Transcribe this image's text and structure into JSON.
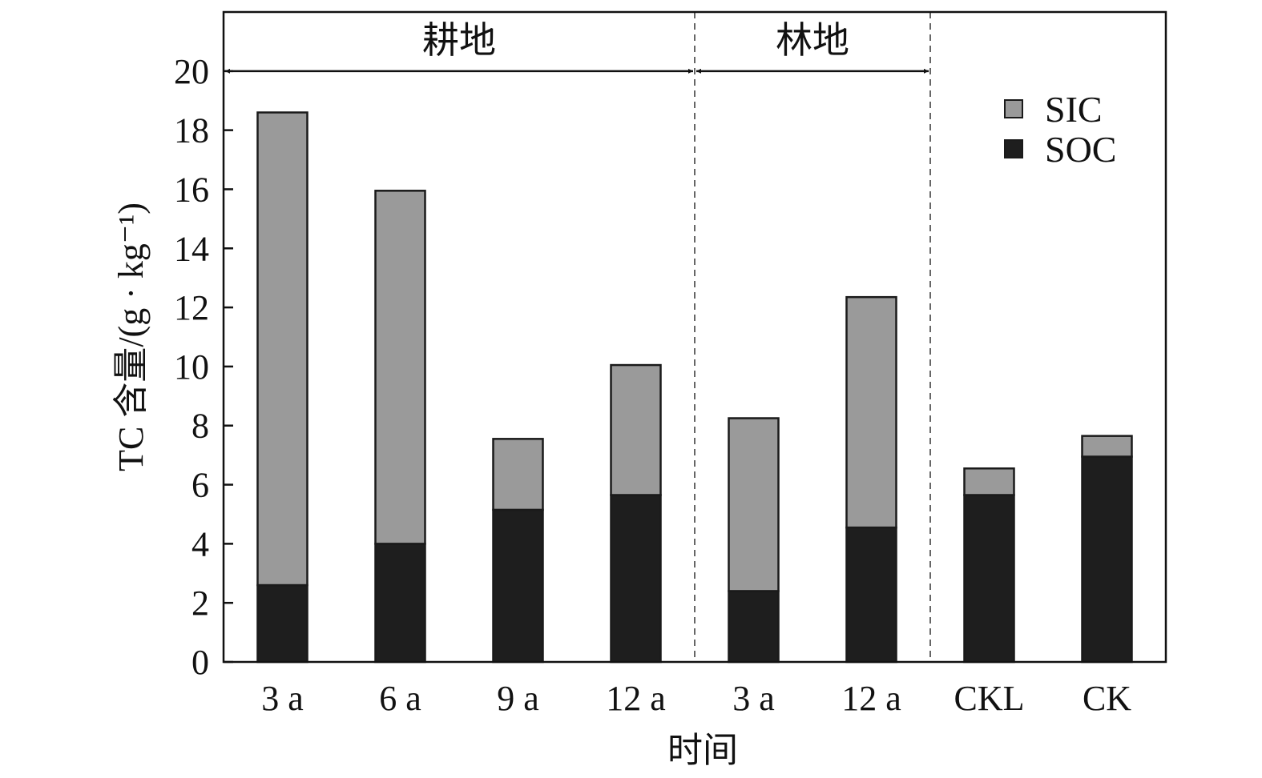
{
  "chart_data": {
    "type": "bar",
    "stacked": true,
    "categories": [
      "3 a",
      "6 a",
      "9 a",
      "12 a",
      "3 a",
      "12 a",
      "CKL",
      "CK"
    ],
    "series": [
      {
        "name": "SOC",
        "color": "#1e1e1e",
        "values": [
          2.6,
          4.0,
          5.15,
          5.65,
          2.4,
          4.55,
          5.65,
          6.95
        ]
      },
      {
        "name": "SIC",
        "color": "#9a9a9a",
        "values": [
          16.0,
          11.95,
          2.4,
          4.4,
          5.85,
          7.8,
          0.9,
          0.7
        ]
      }
    ],
    "title": "",
    "xlabel": "时间",
    "ylabel": "TC 含量/(g · kg⁻¹)",
    "ylim": [
      0,
      22
    ],
    "yticks": [
      0,
      2,
      4,
      6,
      8,
      10,
      12,
      14,
      16,
      18,
      20
    ],
    "grid": false,
    "legend": {
      "placement": "top-right",
      "order": [
        "SIC",
        "SOC"
      ]
    },
    "groups": [
      {
        "label": "耕地",
        "from_index": 0,
        "to_index": 3
      },
      {
        "label": "林地",
        "from_index": 4,
        "to_index": 5
      }
    ],
    "group_arrow_value": 20
  }
}
